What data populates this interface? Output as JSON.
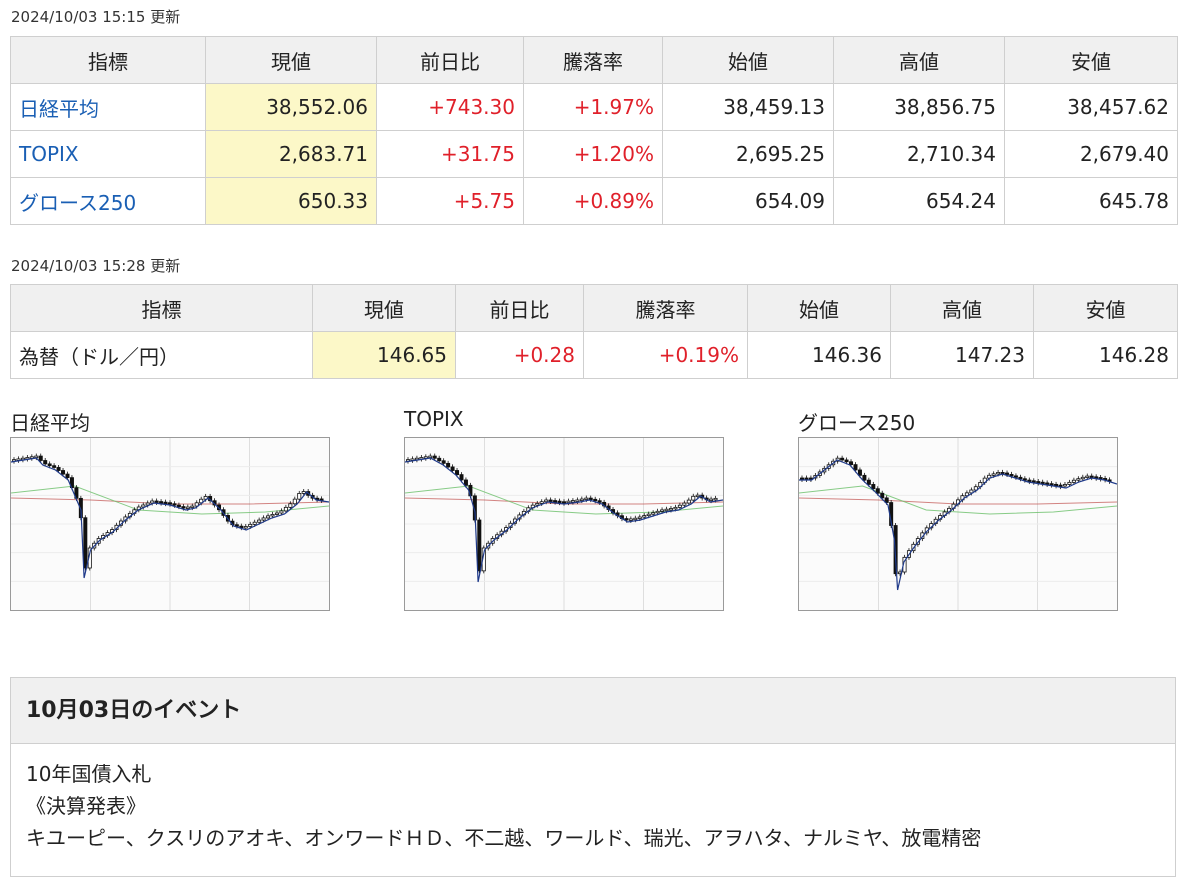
{
  "table1": {
    "updated": "2024/10/03 15:15 更新",
    "headers": [
      "指標",
      "現値",
      "前日比",
      "騰落率",
      "始値",
      "高値",
      "安値"
    ],
    "rows": [
      {
        "name": "日経平均",
        "current": "38,552.06",
        "change": "+743.30",
        "pct": "+1.97%",
        "open": "38,459.13",
        "high": "38,856.75",
        "low": "38,457.62"
      },
      {
        "name": "TOPIX",
        "current": "2,683.71",
        "change": "+31.75",
        "pct": "+1.20%",
        "open": "2,695.25",
        "high": "2,710.34",
        "low": "2,679.40"
      },
      {
        "name": "グロース250",
        "current": "650.33",
        "change": "+5.75",
        "pct": "+0.89%",
        "open": "654.09",
        "high": "654.24",
        "low": "645.78"
      }
    ]
  },
  "table2": {
    "updated": "2024/10/03 15:28 更新",
    "headers": [
      "指標",
      "現値",
      "前日比",
      "騰落率",
      "始値",
      "高値",
      "安値"
    ],
    "rows": [
      {
        "name": "為替（ドル／円）",
        "current": "146.65",
        "change": "+0.28",
        "pct": "+0.19%",
        "open": "146.36",
        "high": "147.23",
        "low": "146.28"
      }
    ]
  },
  "charts": [
    {
      "title": "日経平均"
    },
    {
      "title": "TOPIX"
    },
    {
      "title": "グロース250"
    }
  ],
  "events": {
    "title": "10月03日のイベント",
    "line1": "10年国債入札",
    "line2": "《決算発表》",
    "line3": "キユーピー、クスリのアオキ、オンワードＨＤ、不二越、ワールド、瑞光、アヲハタ、ナルミヤ、放電精密"
  },
  "colors": {
    "link": "#1a5fb4",
    "up": "#e0202a",
    "highlight": "#fcf8c8",
    "header_bg": "#f0f0f0",
    "ma_short": "#1f3a8a",
    "ma_mid": "#6abf69",
    "ma_long": "#c0504d"
  }
}
